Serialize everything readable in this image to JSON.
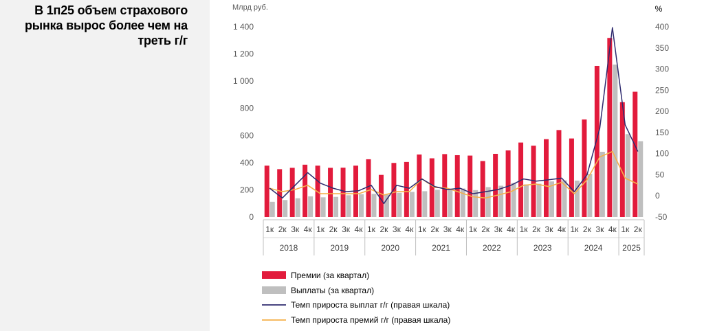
{
  "panel": {
    "heading": "В 1п25 объем страхового рынка вырос более чем на треть г/г"
  },
  "chart_data": {
    "type": "bar",
    "left_axis_unit": "Млрд руб.",
    "right_axis_unit": "%",
    "ylim_left": [
      0,
      1400
    ],
    "yticks_left": [
      0,
      200,
      400,
      600,
      800,
      1000,
      1200,
      1400
    ],
    "ytick_labels_left": [
      "0",
      "200",
      "400",
      "600",
      "800",
      "1 000",
      "1 200",
      "1 400"
    ],
    "ylim_right": [
      -50,
      400
    ],
    "yticks_right": [
      -50,
      0,
      50,
      100,
      150,
      200,
      250,
      300,
      350,
      400
    ],
    "categories": [
      "1к",
      "2к",
      "3к",
      "4к",
      "1к",
      "2к",
      "3к",
      "4к",
      "1к",
      "2к",
      "3к",
      "4к",
      "1к",
      "2к",
      "3к",
      "4к",
      "1к",
      "2к",
      "3к",
      "4к",
      "1к",
      "2к",
      "3к",
      "4к",
      "1к",
      "2к",
      "3к",
      "4к",
      "1к",
      "2к"
    ],
    "years": [
      {
        "label": "2018",
        "count": 4
      },
      {
        "label": "2019",
        "count": 4
      },
      {
        "label": "2020",
        "count": 4
      },
      {
        "label": "2021",
        "count": 4
      },
      {
        "label": "2022",
        "count": 4
      },
      {
        "label": "2023",
        "count": 4
      },
      {
        "label": "2024",
        "count": 4
      },
      {
        "label": "2025",
        "count": 2
      }
    ],
    "series": [
      {
        "name": "Премии (за квартал)",
        "kind": "bar",
        "axis": "left",
        "color": "#e21b3c",
        "values": [
          378,
          352,
          362,
          385,
          378,
          362,
          363,
          378,
          425,
          310,
          398,
          405,
          460,
          432,
          463,
          455,
          452,
          412,
          465,
          490,
          548,
          525,
          573,
          640,
          578,
          718,
          1112,
          1318,
          845,
          922
        ]
      },
      {
        "name": "Выплаты (за квартал)",
        "kind": "bar",
        "axis": "left",
        "color": "#bfbfbf",
        "values": [
          112,
          125,
          138,
          152,
          145,
          148,
          160,
          168,
          170,
          165,
          178,
          185,
          190,
          200,
          205,
          210,
          198,
          220,
          230,
          250,
          240,
          245,
          262,
          270,
          268,
          318,
          480,
          1122,
          610,
          558
        ]
      },
      {
        "name": "Темп прироста выплат г/г (правая шкала)",
        "kind": "line",
        "axis": "right",
        "color": "#2e2a6e",
        "values": [
          18,
          -5,
          25,
          55,
          30,
          18,
          10,
          12,
          25,
          -18,
          25,
          18,
          40,
          22,
          15,
          18,
          5,
          10,
          15,
          25,
          40,
          35,
          38,
          42,
          10,
          50,
          160,
          398,
          168,
          105
        ]
      },
      {
        "name": "Темп прироста премий г/г (правая шкала)",
        "kind": "line",
        "axis": "right",
        "color": "#f5b04a",
        "values": [
          18,
          10,
          15,
          25,
          5,
          5,
          5,
          5,
          15,
          2,
          10,
          10,
          40,
          20,
          18,
          8,
          -2,
          -5,
          2,
          10,
          25,
          28,
          22,
          32,
          5,
          38,
          92,
          105,
          42,
          28
        ]
      }
    ],
    "legend_position": "bottom-left"
  }
}
